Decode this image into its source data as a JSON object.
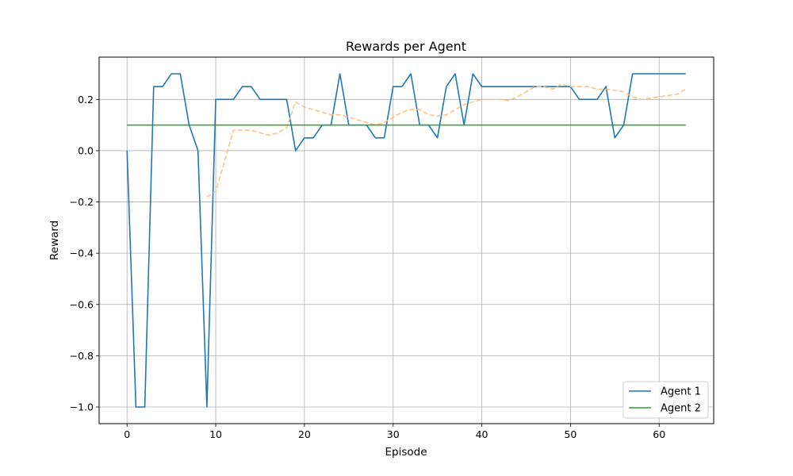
{
  "chart_data": {
    "type": "line",
    "title": "Rewards per Agent",
    "xlabel": "Episode",
    "ylabel": "Reward",
    "xlim": [
      -3.15,
      66.15
    ],
    "ylim": [
      -1.065,
      0.365
    ],
    "xticks": [
      0,
      10,
      20,
      30,
      40,
      50,
      60
    ],
    "yticks": [
      -1.0,
      -0.8,
      -0.6,
      -0.4,
      -0.2,
      0.0,
      0.2
    ],
    "ytick_labels": [
      "−1.0",
      "−0.8",
      "−0.6",
      "−0.4",
      "−0.2",
      "0.0",
      "0.2"
    ],
    "grid": true,
    "legend_position": "lower-right",
    "series": [
      {
        "name": "Agent 1",
        "color": "#1f77b4",
        "style": "solid",
        "in_legend": true,
        "x_start": 0,
        "values": [
          0.0,
          -1.0,
          -1.0,
          0.25,
          0.25,
          0.3,
          0.3,
          0.1,
          0.0,
          -1.0,
          0.2,
          0.2,
          0.2,
          0.25,
          0.25,
          0.2,
          0.2,
          0.2,
          0.2,
          0.0,
          0.05,
          0.05,
          0.1,
          0.1,
          0.3,
          0.1,
          0.1,
          0.1,
          0.05,
          0.05,
          0.25,
          0.25,
          0.3,
          0.1,
          0.1,
          0.05,
          0.25,
          0.3,
          0.1,
          0.3,
          0.25,
          0.25,
          0.25,
          0.25,
          0.25,
          0.25,
          0.25,
          0.25,
          0.25,
          0.25,
          0.25,
          0.2,
          0.2,
          0.2,
          0.25,
          0.05,
          0.1,
          0.3,
          0.3,
          0.3,
          0.3,
          0.3,
          0.3,
          0.3
        ]
      },
      {
        "name": "",
        "color": "#ffbb78",
        "style": "dashed",
        "in_legend": false,
        "x_start": 9,
        "values": [
          -0.18,
          -0.16,
          -0.04,
          0.08,
          0.08,
          0.08,
          0.07,
          0.06,
          0.07,
          0.09,
          0.19,
          0.17,
          0.16,
          0.15,
          0.14,
          0.14,
          0.13,
          0.12,
          0.11,
          0.1,
          0.11,
          0.13,
          0.15,
          0.16,
          0.16,
          0.14,
          0.135,
          0.14,
          0.16,
          0.18,
          0.19,
          0.2,
          0.2,
          0.2,
          0.195,
          0.21,
          0.23,
          0.25,
          0.25,
          0.24,
          0.26,
          0.25,
          0.25,
          0.25,
          0.24,
          0.24,
          0.235,
          0.23,
          0.21,
          0.2,
          0.205,
          0.21,
          0.215,
          0.22,
          0.24
        ]
      },
      {
        "name": "Agent 2",
        "color": "#2ca02c",
        "style": "solid",
        "in_legend": true,
        "x_start": 0,
        "values": [
          0.1,
          0.1,
          0.1,
          0.1,
          0.1,
          0.1,
          0.1,
          0.1,
          0.1,
          0.1,
          0.1,
          0.1,
          0.1,
          0.1,
          0.1,
          0.1,
          0.1,
          0.1,
          0.1,
          0.1,
          0.1,
          0.1,
          0.1,
          0.1,
          0.1,
          0.1,
          0.1,
          0.1,
          0.1,
          0.1,
          0.1,
          0.1,
          0.1,
          0.1,
          0.1,
          0.1,
          0.1,
          0.1,
          0.1,
          0.1,
          0.1,
          0.1,
          0.1,
          0.1,
          0.1,
          0.1,
          0.1,
          0.1,
          0.1,
          0.1,
          0.1,
          0.1,
          0.1,
          0.1,
          0.1,
          0.1,
          0.1,
          0.1,
          0.1,
          0.1,
          0.1,
          0.1,
          0.1,
          0.1
        ]
      }
    ]
  }
}
